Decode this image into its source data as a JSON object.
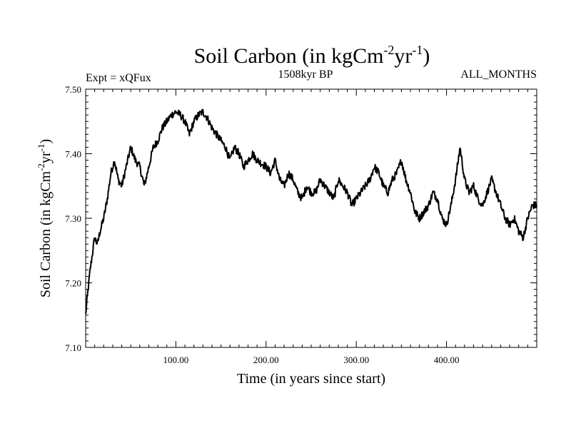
{
  "chart_data": {
    "type": "line",
    "title": "Soil Carbon (in kgCm",
    "title_sup1": "-2",
    "title_mid": "yr",
    "title_sup2": "-1",
    "title_end": ")",
    "subtitle_left": "Expt = xQFux",
    "subtitle_center": "1508kyr BP",
    "subtitle_right": "ALL_MONTHS",
    "xlabel": "Time (in years since start)",
    "ylabel_main": "Soil Carbon (in kgCm",
    "ylabel_sup1": "-2",
    "ylabel_mid": "yr",
    "ylabel_sup2": "-1",
    "ylabel_end": ")",
    "xlim": [
      0,
      500
    ],
    "ylim": [
      7.1,
      7.5
    ],
    "x_ticks": [
      100,
      200,
      300,
      400
    ],
    "x_tick_labels": [
      "100.00",
      "200.00",
      "300.00",
      "400.00"
    ],
    "y_ticks": [
      7.1,
      7.2,
      7.3,
      7.4,
      7.5
    ],
    "y_tick_labels": [
      "7.10",
      "7.20",
      "7.30",
      "7.40",
      "7.50"
    ],
    "series": [
      {
        "name": "Soil Carbon",
        "color": "#000000",
        "x": [
          0,
          2,
          5,
          8,
          10,
          13,
          16,
          20,
          24,
          28,
          32,
          36,
          40,
          45,
          50,
          55,
          60,
          65,
          70,
          75,
          80,
          85,
          90,
          95,
          100,
          105,
          110,
          115,
          120,
          125,
          130,
          135,
          140,
          145,
          150,
          155,
          160,
          165,
          170,
          175,
          180,
          185,
          190,
          195,
          200,
          205,
          210,
          215,
          220,
          225,
          230,
          235,
          240,
          245,
          250,
          255,
          260,
          265,
          270,
          275,
          280,
          285,
          290,
          295,
          300,
          305,
          310,
          315,
          320,
          325,
          330,
          335,
          340,
          345,
          350,
          355,
          360,
          365,
          370,
          375,
          380,
          385,
          390,
          395,
          400,
          405,
          410,
          415,
          420,
          425,
          430,
          435,
          440,
          445,
          450,
          455,
          460,
          465,
          470,
          475,
          480,
          485,
          490,
          495,
          500
        ],
        "y": [
          7.15,
          7.18,
          7.22,
          7.25,
          7.27,
          7.26,
          7.28,
          7.3,
          7.33,
          7.37,
          7.39,
          7.36,
          7.35,
          7.38,
          7.41,
          7.39,
          7.38,
          7.35,
          7.38,
          7.41,
          7.42,
          7.44,
          7.45,
          7.46,
          7.465,
          7.46,
          7.45,
          7.43,
          7.45,
          7.46,
          7.465,
          7.455,
          7.44,
          7.43,
          7.42,
          7.41,
          7.39,
          7.41,
          7.4,
          7.38,
          7.39,
          7.4,
          7.39,
          7.385,
          7.38,
          7.37,
          7.39,
          7.36,
          7.35,
          7.37,
          7.36,
          7.34,
          7.33,
          7.35,
          7.34,
          7.34,
          7.36,
          7.35,
          7.34,
          7.33,
          7.36,
          7.35,
          7.34,
          7.32,
          7.33,
          7.34,
          7.35,
          7.36,
          7.38,
          7.37,
          7.35,
          7.34,
          7.36,
          7.37,
          7.39,
          7.36,
          7.34,
          7.31,
          7.3,
          7.31,
          7.32,
          7.34,
          7.33,
          7.3,
          7.29,
          7.32,
          7.36,
          7.41,
          7.36,
          7.34,
          7.35,
          7.33,
          7.32,
          7.34,
          7.36,
          7.34,
          7.32,
          7.3,
          7.29,
          7.3,
          7.28,
          7.27,
          7.3,
          7.32,
          7.32
        ]
      }
    ]
  }
}
